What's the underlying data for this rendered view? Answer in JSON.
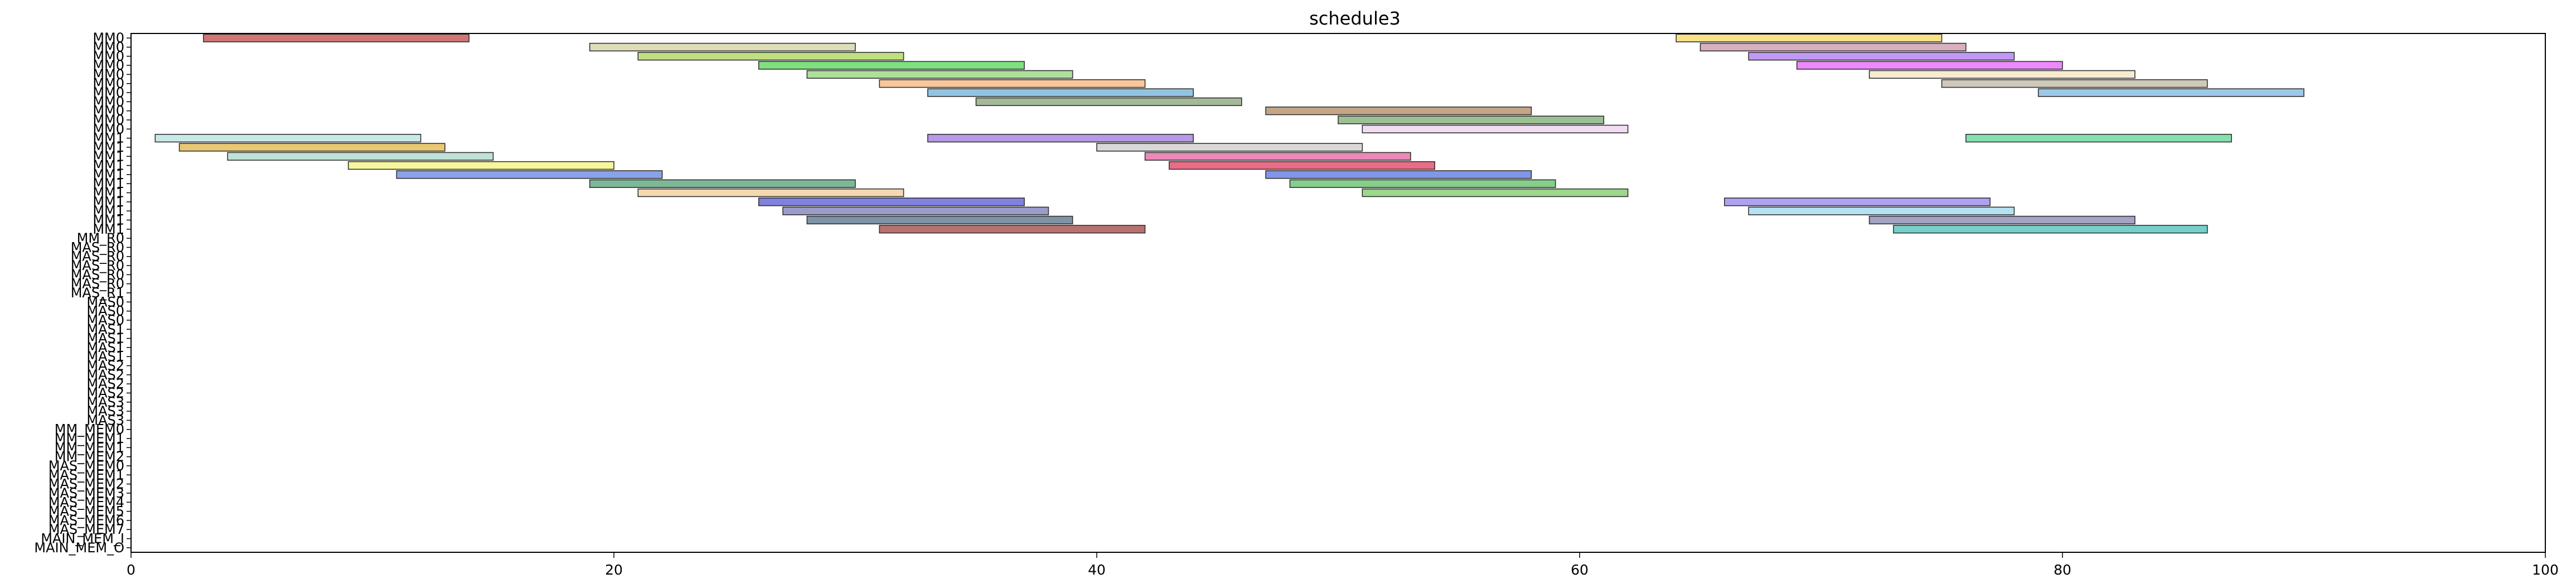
{
  "chart_data": {
    "type": "gantt",
    "title": "schedule3",
    "xlabel": "",
    "ylabel": "",
    "xlim": [
      0,
      100
    ],
    "x_ticks": [
      0,
      20,
      40,
      60,
      80,
      100
    ],
    "grid": false,
    "legend": "none",
    "rows": [
      {
        "label": "MM0",
        "bars": [
          [
            3,
            14,
            "#b22222"
          ],
          [
            64,
            75,
            "#f4d03f"
          ]
        ]
      },
      {
        "label": "MM0",
        "bars": [
          [
            19,
            30,
            "#c8c890"
          ],
          [
            65,
            76,
            "#c0809a"
          ]
        ]
      },
      {
        "label": "MM0",
        "bars": [
          [
            21,
            32,
            "#9acd32"
          ],
          [
            67,
            78,
            "#9b59f0"
          ]
        ]
      },
      {
        "label": "MM0",
        "bars": [
          [
            26,
            37,
            "#32cd32"
          ],
          [
            69,
            80,
            "#e040fb"
          ]
        ]
      },
      {
        "label": "MM0",
        "bars": [
          [
            28,
            39,
            "#7ccd5c"
          ],
          [
            72,
            83,
            "#f5deb3"
          ]
        ]
      },
      {
        "label": "MM0",
        "bars": [
          [
            31,
            42,
            "#f4a460"
          ],
          [
            75,
            86,
            "#b0a890"
          ]
        ]
      },
      {
        "label": "MM0",
        "bars": [
          [
            33,
            44,
            "#4f9fd0"
          ],
          [
            79,
            90,
            "#5fa8d8"
          ]
        ]
      },
      {
        "label": "MM0",
        "bars": [
          [
            35,
            46,
            "#6b8e5a"
          ]
        ]
      },
      {
        "label": "MM0",
        "bars": [
          [
            47,
            58,
            "#a0703c"
          ]
        ]
      },
      {
        "label": "MM0",
        "bars": [
          [
            50,
            61,
            "#5d9a50"
          ]
        ]
      },
      {
        "label": "MM0",
        "bars": [
          [
            51,
            62,
            "#e8c8e8"
          ]
        ]
      },
      {
        "label": "MM1",
        "bars": [
          [
            1,
            12,
            "#a8dcd8"
          ],
          [
            33,
            44,
            "#8a5ad6"
          ],
          [
            76,
            87,
            "#3ccd7c"
          ]
        ]
      },
      {
        "label": "MM1",
        "bars": [
          [
            2,
            13,
            "#daa520"
          ],
          [
            40,
            51,
            "#c0c0c0"
          ]
        ]
      },
      {
        "label": "MM1",
        "bars": [
          [
            4,
            15,
            "#98d0c0"
          ],
          [
            42,
            53,
            "#e0408c"
          ]
        ]
      },
      {
        "label": "MM1",
        "bars": [
          [
            9,
            20,
            "#f0f060"
          ],
          [
            43,
            54,
            "#dc143c"
          ]
        ]
      },
      {
        "label": "MM1",
        "bars": [
          [
            11,
            22,
            "#4169e1"
          ],
          [
            47,
            58,
            "#3355dd"
          ]
        ]
      },
      {
        "label": "MM1",
        "bars": [
          [
            19,
            30,
            "#2e8b57"
          ],
          [
            48,
            59,
            "#3cb043"
          ]
        ]
      },
      {
        "label": "MM1",
        "bars": [
          [
            21,
            32,
            "#f0c080"
          ],
          [
            51,
            62,
            "#60c040"
          ]
        ]
      },
      {
        "label": "MM1",
        "bars": [
          [
            26,
            37,
            "#3333cc"
          ],
          [
            66,
            77,
            "#7b68ee"
          ]
        ]
      },
      {
        "label": "MM1",
        "bars": [
          [
            27,
            38,
            "#6060aa"
          ],
          [
            67,
            78,
            "#87ceeb"
          ]
        ]
      },
      {
        "label": "MM1",
        "bars": [
          [
            28,
            39,
            "#305070"
          ],
          [
            72,
            83,
            "#6a6aa0"
          ]
        ]
      },
      {
        "label": "MM1",
        "bars": [
          [
            31,
            42,
            "#8b1a1a"
          ],
          [
            73,
            86,
            "#20b2aa"
          ]
        ]
      }
    ],
    "small_task_rows": [
      "MM_R0",
      "MAS_R0",
      "MAS_R0",
      "MAS_R0",
      "MAS_R0",
      "MAS_R0",
      "MAS_R1",
      "MAS0",
      "MAS0",
      "MAS0",
      "MAS1",
      "MAS1",
      "MAS1",
      "MAS1",
      "MAS2",
      "MAS2",
      "MAS2",
      "MAS2",
      "MAS3",
      "MAS3",
      "MAS3",
      "MM_MEM0",
      "MM_MEM1",
      "MM_MEM1",
      "MM_MEM2",
      "MAS_MEM0",
      "MAS_MEM1",
      "MAS_MEM2",
      "MAS_MEM3",
      "MAS_MEM4",
      "MAS_MEM5",
      "MAS_MEM6",
      "MAS_MEM7",
      "MAIN_MEM_I",
      "MAIN_MEM_O"
    ],
    "small_task_note_values": []
  }
}
